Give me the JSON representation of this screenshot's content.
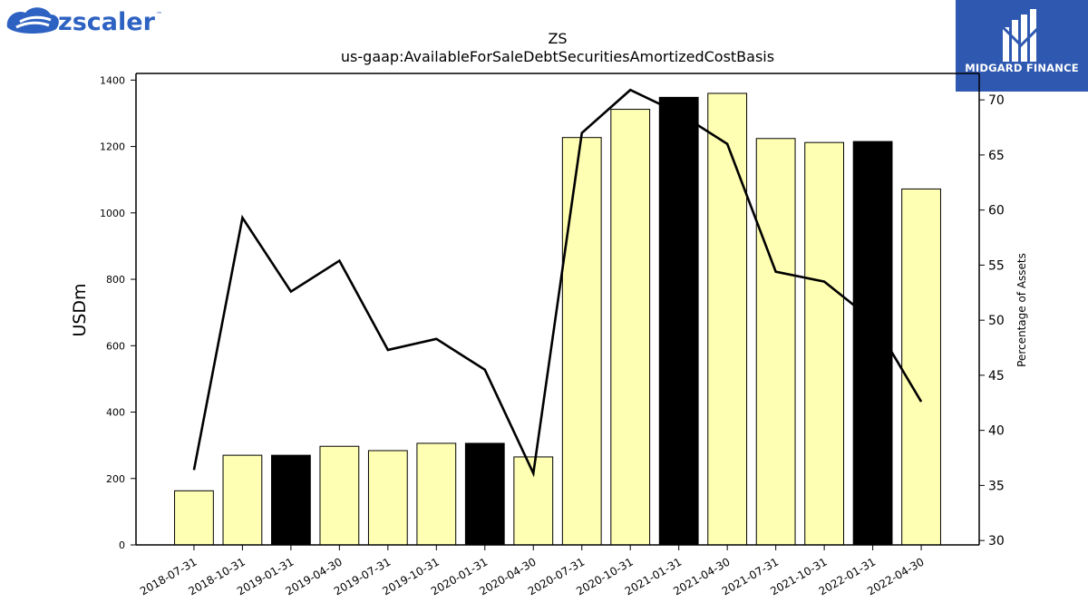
{
  "logos": {
    "left_text": "zscaler",
    "left_mark": "™",
    "right_text": "MIDGARD FINANCE"
  },
  "chart_data": {
    "type": "bar",
    "title": "ZS",
    "subtitle": "us-gaap:AvailableForSaleDebtSecuritiesAmortizedCostBasis",
    "ylabel": "USDm",
    "y2label": "Percentage of Assets",
    "ylim": [
      0,
      1420
    ],
    "y2lim": [
      29.6,
      72.4
    ],
    "yticks": [
      0,
      200,
      400,
      600,
      800,
      1000,
      1200,
      1400
    ],
    "y2ticks": [
      30,
      35,
      40,
      45,
      50,
      55,
      60,
      65,
      70
    ],
    "categories": [
      "2018-07-31",
      "2018-10-31",
      "2019-01-31",
      "2019-04-30",
      "2019-07-31",
      "2019-10-31",
      "2020-01-31",
      "2020-04-30",
      "2020-07-31",
      "2020-10-31",
      "2021-01-31",
      "2021-04-30",
      "2021-07-31",
      "2021-10-31",
      "2022-01-31",
      "2022-04-30"
    ],
    "values": [
      163,
      270,
      270,
      297,
      284,
      306,
      306,
      265,
      1227,
      1312,
      1348,
      1360,
      1224,
      1212,
      1215,
      1072
    ],
    "bar_colors": [
      "#ffffb3",
      "#ffffb3",
      "#000000",
      "#ffffb3",
      "#ffffb3",
      "#ffffb3",
      "#000000",
      "#ffffb3",
      "#ffffb3",
      "#ffffb3",
      "#000000",
      "#ffffb3",
      "#ffffb3",
      "#ffffb3",
      "#000000",
      "#ffffb3"
    ],
    "line_values": [
      36.4,
      59.3,
      52.6,
      55.4,
      47.3,
      48.3,
      45.5,
      36.1,
      67.0,
      70.9,
      68.8,
      66.0,
      54.4,
      53.5,
      50.0,
      42.6
    ],
    "line_color": "#000000",
    "grid": false,
    "legend": "none"
  }
}
